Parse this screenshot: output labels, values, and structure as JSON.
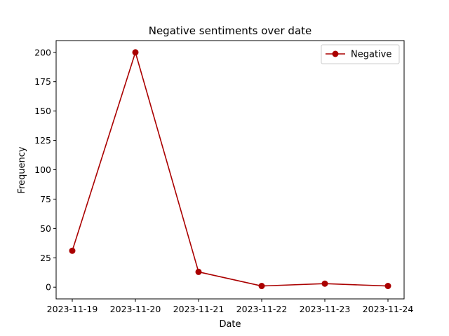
{
  "chart_data": {
    "type": "line",
    "title": "Negative sentiments over date",
    "xlabel": "Date",
    "ylabel": "Frequency",
    "x": [
      "2023-11-19",
      "2023-11-20",
      "2023-11-21",
      "2023-11-22",
      "2023-11-23",
      "2023-11-24"
    ],
    "series": [
      {
        "name": "Negative",
        "values": [
          31,
          200,
          13,
          1,
          3,
          1
        ],
        "color": "#aa0000"
      }
    ],
    "ylim": [
      -10,
      210
    ],
    "yticks": [
      0,
      25,
      50,
      75,
      100,
      125,
      150,
      175,
      200
    ],
    "grid": false,
    "legend": "top-right"
  }
}
